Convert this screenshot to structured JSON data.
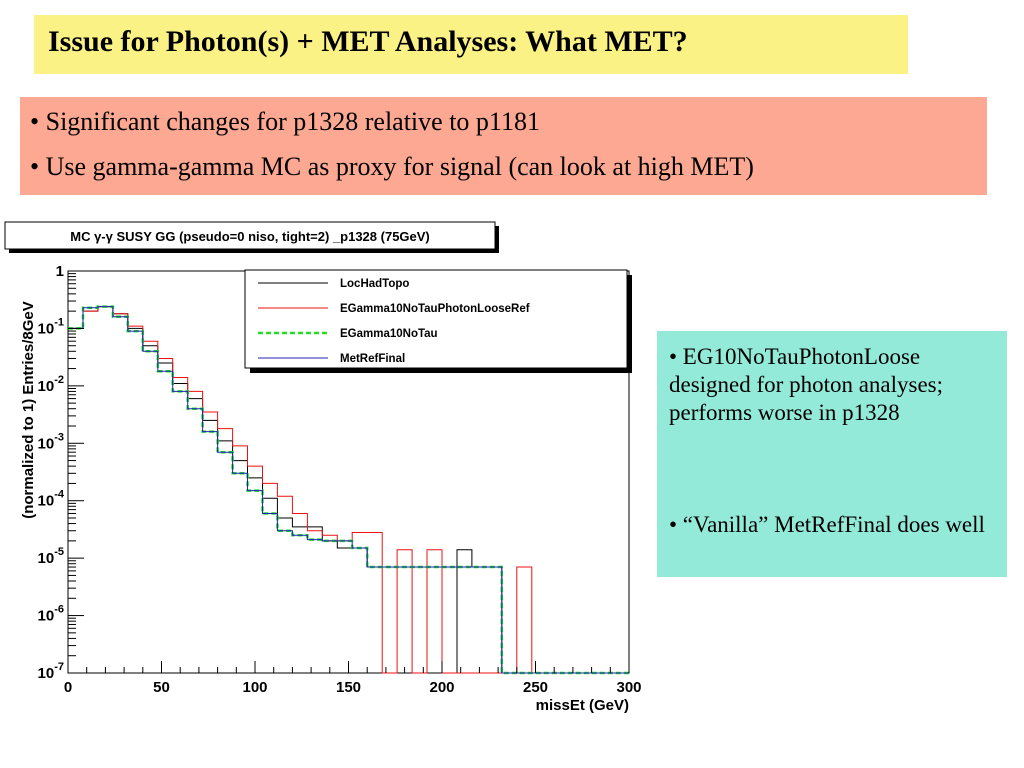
{
  "slide": {
    "title": "Issue for Photon(s) + MET Analyses: What MET?",
    "bullets": [
      "• Significant changes for p1328 relative to p1181",
      "• Use gamma-gamma MC as proxy for signal (can look at high MET)"
    ],
    "notes": [
      "• EG10NoTauPhotonLoose designed for photon analyses; performs worse in p1328",
      "• “Vanilla” MetRefFinal does well"
    ]
  },
  "chart_data": {
    "type": "line",
    "title": "MC γ-γ SUSY GG (pseudo=0 niso, tight=2) _p1328 (75GeV)",
    "xlabel": "missEt (GeV)",
    "ylabel": "(normalized to 1) Entries/8GeV",
    "xlim": [
      0,
      300
    ],
    "ylim": [
      1e-07,
      1
    ],
    "yscale": "log",
    "bin_width": 8,
    "x_ticks": [
      "0",
      "50",
      "100",
      "150",
      "200",
      "250",
      "300"
    ],
    "y_ticks": [
      "10^-7",
      "10^-6",
      "10^-5",
      "10^-4",
      "10^-3",
      "10^-2",
      "10^-1",
      "1"
    ],
    "legend_position": "top-right",
    "series": [
      {
        "name": "LocHadTopo",
        "color": "#000000",
        "style": "solid",
        "x": [
          0,
          8,
          16,
          24,
          32,
          40,
          48,
          56,
          64,
          72,
          80,
          88,
          96,
          104,
          112,
          120,
          128,
          136,
          144,
          152,
          160,
          168,
          176,
          184,
          192,
          200,
          208,
          216,
          224,
          232,
          240,
          248,
          256,
          264,
          272,
          280,
          288,
          296
        ],
        "y": [
          0.1,
          0.2,
          0.24,
          0.18,
          0.1,
          0.05,
          0.025,
          0.011,
          0.006,
          0.0025,
          0.0011,
          0.0005,
          0.00025,
          0.00011,
          5e-05,
          3.5e-05,
          3.5e-05,
          2e-05,
          1.5e-05,
          1.5e-05,
          7e-06,
          7e-06,
          7e-06,
          7e-06,
          1e-07,
          1e-07,
          1.4e-05,
          7e-06,
          7e-06,
          1e-07,
          1e-07,
          1e-07,
          1e-07,
          1e-07,
          1e-07,
          1e-07,
          1e-07,
          1e-07
        ]
      },
      {
        "name": "EGamma10NoTauPhotonLooseRef",
        "color": "#ee1111",
        "style": "solid",
        "x": [
          0,
          8,
          16,
          24,
          32,
          40,
          48,
          56,
          64,
          72,
          80,
          88,
          96,
          104,
          112,
          120,
          128,
          136,
          144,
          152,
          160,
          168,
          176,
          184,
          192,
          200,
          208,
          216,
          224,
          232,
          240,
          248,
          256,
          264,
          272,
          280,
          288,
          296
        ],
        "y": [
          0.1,
          0.2,
          0.24,
          0.18,
          0.11,
          0.06,
          0.03,
          0.014,
          0.008,
          0.0035,
          0.0018,
          0.0009,
          0.0004,
          0.0002,
          0.00012,
          6e-05,
          3e-05,
          2.5e-05,
          2e-05,
          2.8e-05,
          2.8e-05,
          1e-07,
          1.4e-05,
          1e-07,
          1.4e-05,
          1e-07,
          1e-07,
          1e-07,
          1e-07,
          1e-07,
          7e-06,
          1e-07,
          1e-07,
          1e-07,
          1e-07,
          1e-07,
          1e-07,
          1e-07
        ]
      },
      {
        "name": "EGamma10NoTau",
        "color": "#22dd22",
        "style": "dashed",
        "x": [
          0,
          8,
          16,
          24,
          32,
          40,
          48,
          56,
          64,
          72,
          80,
          88,
          96,
          104,
          112,
          120,
          128,
          136,
          144,
          152,
          160,
          168,
          176,
          184,
          192,
          200,
          208,
          216,
          224,
          232,
          240,
          248,
          256,
          264,
          272,
          280,
          288,
          296
        ],
        "y": [
          0.1,
          0.23,
          0.24,
          0.16,
          0.09,
          0.04,
          0.018,
          0.008,
          0.004,
          0.0016,
          0.0007,
          0.0003,
          0.00015,
          6e-05,
          3e-05,
          2.5e-05,
          2.1e-05,
          2e-05,
          2e-05,
          1.5e-05,
          7e-06,
          7e-06,
          7e-06,
          7e-06,
          7e-06,
          7e-06,
          7e-06,
          7e-06,
          7e-06,
          1e-07,
          1e-07,
          1e-07,
          1e-07,
          1e-07,
          1e-07,
          1e-07,
          1e-07,
          1e-07
        ]
      },
      {
        "name": "MetRefFinal",
        "color": "#2222bb",
        "style": "solid",
        "x": [
          0,
          8,
          16,
          24,
          32,
          40,
          48,
          56,
          64,
          72,
          80,
          88,
          96,
          104,
          112,
          120,
          128,
          136,
          144,
          152,
          160,
          168,
          176,
          184,
          192,
          200,
          208,
          216,
          224,
          232,
          240,
          248,
          256,
          264,
          272,
          280,
          288,
          296
        ],
        "y": [
          0.1,
          0.23,
          0.24,
          0.16,
          0.09,
          0.04,
          0.018,
          0.008,
          0.004,
          0.0016,
          0.0007,
          0.0003,
          0.00015,
          6e-05,
          3e-05,
          2.5e-05,
          2.1e-05,
          2e-05,
          2e-05,
          1.5e-05,
          7e-06,
          7e-06,
          7e-06,
          7e-06,
          7e-06,
          7e-06,
          7e-06,
          7e-06,
          7e-06,
          1e-07,
          1e-07,
          1e-07,
          1e-07,
          1e-07,
          1e-07,
          1e-07,
          1e-07,
          1e-07
        ]
      }
    ]
  }
}
